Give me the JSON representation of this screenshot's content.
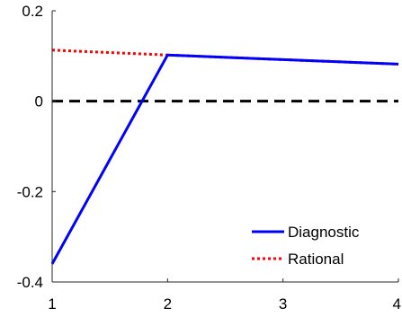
{
  "chart_data": {
    "type": "line",
    "title": "",
    "xlabel": "",
    "ylabel": "",
    "xlim": [
      1,
      4
    ],
    "ylim": [
      -0.4,
      0.2
    ],
    "x_ticks": [
      1,
      2,
      3,
      4
    ],
    "y_ticks": [
      0.2,
      0,
      -0.2,
      -0.4
    ],
    "x_tick_labels": [
      "1",
      "2",
      "3",
      "4"
    ],
    "y_tick_labels": [
      "0.2",
      "0",
      "-0.2",
      "-0.4"
    ],
    "grid": false,
    "legend_position": "bottom-right",
    "series": [
      {
        "name": "Diagnostic",
        "x": [
          1,
          2,
          3,
          4
        ],
        "values": [
          -0.36,
          0.102,
          0.092,
          0.082
        ],
        "color": "#0000ff",
        "style": "solid"
      },
      {
        "name": "Rational",
        "x": [
          1,
          2,
          3,
          4
        ],
        "values": [
          0.113,
          0.102,
          0.092,
          0.082
        ],
        "color": "#ff0000",
        "style": "dotted"
      }
    ],
    "reference_lines": [
      {
        "y": 0,
        "color": "#000000",
        "style": "dashed"
      }
    ]
  }
}
